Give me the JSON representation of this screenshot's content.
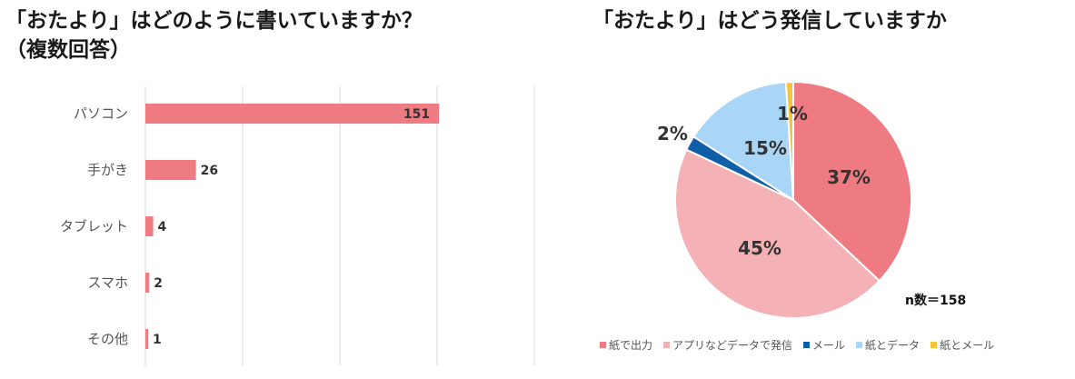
{
  "titles": {
    "left_line1": "「おたより」はどのように書いていますか？",
    "left_line2": "（複数回答）",
    "right": "「おたより」はどう発信していますか"
  },
  "note": "n数＝158",
  "colors": {
    "bar": "#ee7b82",
    "pie": [
      "#ee7b82",
      "#f4b2b6",
      "#0f5fa8",
      "#a9d6f7",
      "#f5c43a"
    ],
    "grid": "#d9d9d9"
  },
  "chart_data": [
    {
      "type": "bar",
      "orientation": "horizontal",
      "title": "「おたより」はどのように書いていますか？（複数回答）",
      "categories": [
        "パソコン",
        "手がき",
        "タブレット",
        "スマホ",
        "その他"
      ],
      "values": [
        151,
        26,
        4,
        2,
        1
      ],
      "xlim": [
        0,
        200
      ],
      "grid": true
    },
    {
      "type": "pie",
      "title": "「おたより」はどう発信していますか",
      "labels": [
        "紙で出力",
        "アプリなどデータで発信",
        "メール",
        "紙とデータ",
        "紙とメール"
      ],
      "values": [
        37,
        45,
        2,
        15,
        1
      ],
      "value_labels": [
        "37%",
        "45%",
        "2%",
        "15%",
        "1%"
      ],
      "legend": "bottom"
    }
  ]
}
